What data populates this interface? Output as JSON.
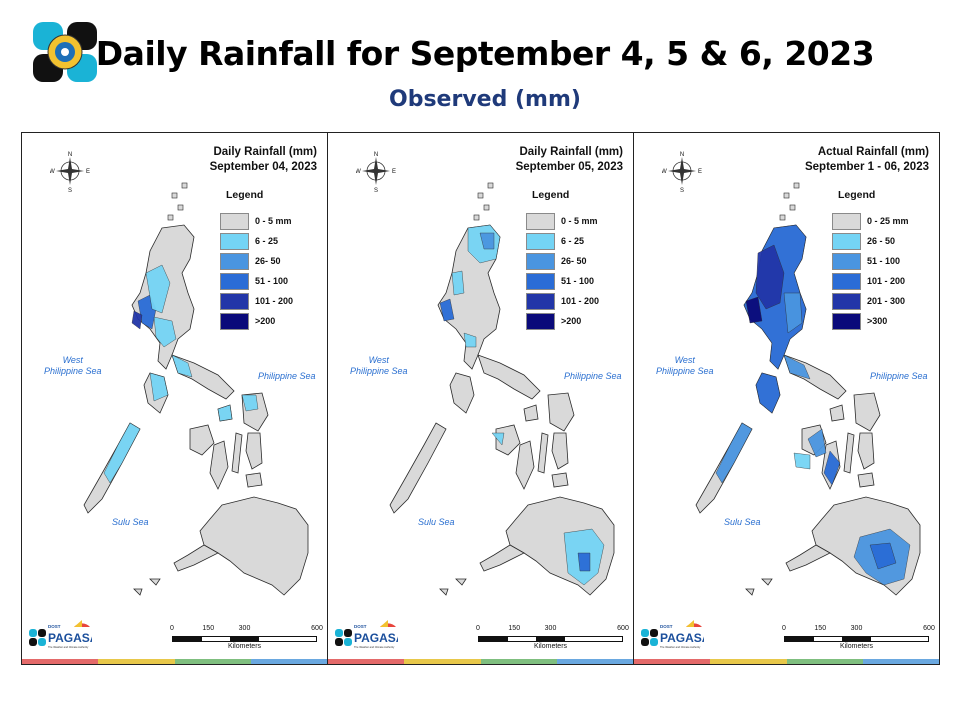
{
  "header": {
    "title": "Daily Rainfall for September 4, 5 & 6, 2023",
    "subtitle": "Observed (mm)",
    "logo_icon": "dost-pagasa-seal-logo"
  },
  "compass": {
    "n": "N",
    "e": "E",
    "s": "S",
    "w": "W"
  },
  "scale": {
    "ticks": [
      "0",
      "150",
      "300",
      "600"
    ],
    "unit": "Kilometers"
  },
  "branding": {
    "name": "PAGASA",
    "prefix": "DOST",
    "tagline": "The Weather and Climate Authority"
  },
  "seas": {
    "west": [
      "West",
      "Philippine Sea"
    ],
    "east": "Philippine Sea",
    "sulu": "Sulu Sea"
  },
  "stripe_colors": [
    "#e46a6a",
    "#e8c84a",
    "#7fbf7f",
    "#6aa8e0"
  ],
  "panels": [
    {
      "title": "Daily Rainfall (mm)",
      "date": "September 04, 2023",
      "legend_title": "Legend",
      "legend": [
        {
          "label": "0 - 5 mm",
          "color": "#d9d9d9"
        },
        {
          "label": "6 - 25",
          "color": "#74d4f5"
        },
        {
          "label": "26- 50",
          "color": "#4a95e0"
        },
        {
          "label": "51 - 100",
          "color": "#2a6cd6"
        },
        {
          "label": "101 - 200",
          "color": "#2236a8"
        },
        {
          "label": ">200",
          "color": "#0a0a7a"
        }
      ]
    },
    {
      "title": "Daily Rainfall (mm)",
      "date": "September 05, 2023",
      "legend_title": "Legend",
      "legend": [
        {
          "label": "0 - 5 mm",
          "color": "#d9d9d9"
        },
        {
          "label": "6 - 25",
          "color": "#74d4f5"
        },
        {
          "label": "26- 50",
          "color": "#4a95e0"
        },
        {
          "label": "51 - 100",
          "color": "#2a6cd6"
        },
        {
          "label": "101 - 200",
          "color": "#2236a8"
        },
        {
          "label": ">200",
          "color": "#0a0a7a"
        }
      ]
    },
    {
      "title": "Actual Rainfall (mm)",
      "date": "September 1 - 06, 2023",
      "legend_title": "Legend",
      "legend": [
        {
          "label": "0 - 25 mm",
          "color": "#d9d9d9"
        },
        {
          "label": "26 - 50",
          "color": "#74d4f5"
        },
        {
          "label": "51 - 100",
          "color": "#4a95e0"
        },
        {
          "label": "101 - 200",
          "color": "#2a6cd6"
        },
        {
          "label": "201 - 300",
          "color": "#2236a8"
        },
        {
          "label": ">300",
          "color": "#0a0a7a"
        }
      ]
    }
  ]
}
